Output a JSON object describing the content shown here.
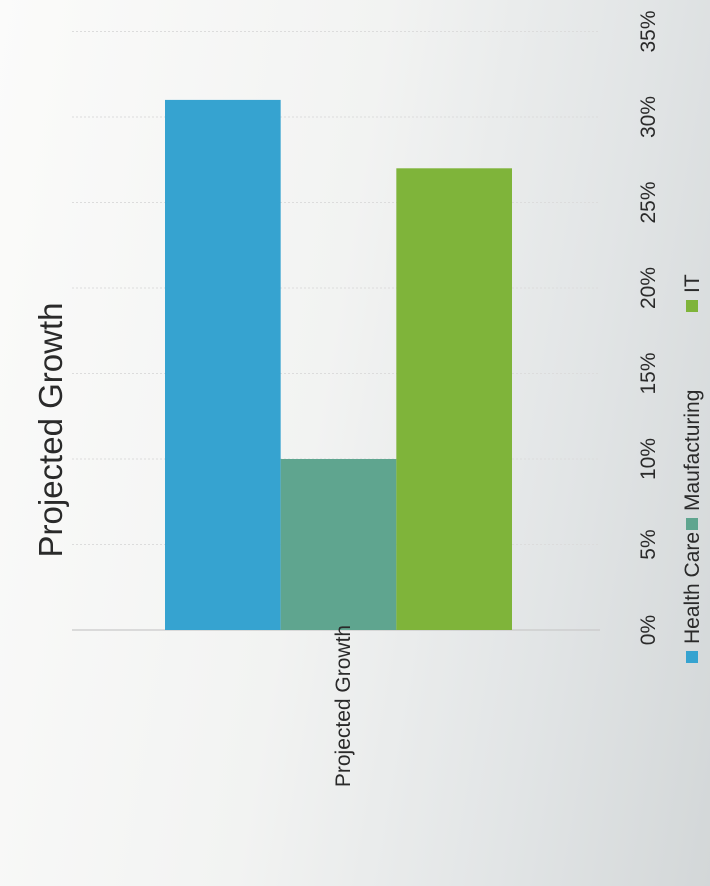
{
  "chart_data": {
    "type": "bar",
    "title": "Projected Growth",
    "categories": [
      "Projected Growth"
    ],
    "series": [
      {
        "name": "Health Care",
        "values": [
          31
        ]
      },
      {
        "name": "Maufacturing",
        "values": [
          10
        ]
      },
      {
        "name": "IT",
        "values": [
          27
        ]
      }
    ],
    "ticks": [
      "0%",
      "5%",
      "10%",
      "15%",
      "20%",
      "25%",
      "30%",
      "35%"
    ],
    "ylim": [
      0,
      35
    ],
    "grid": true,
    "legend_position": "bottom",
    "colors": [
      "#36a3d0",
      "#5fa58f",
      "#7fb43a"
    ]
  }
}
